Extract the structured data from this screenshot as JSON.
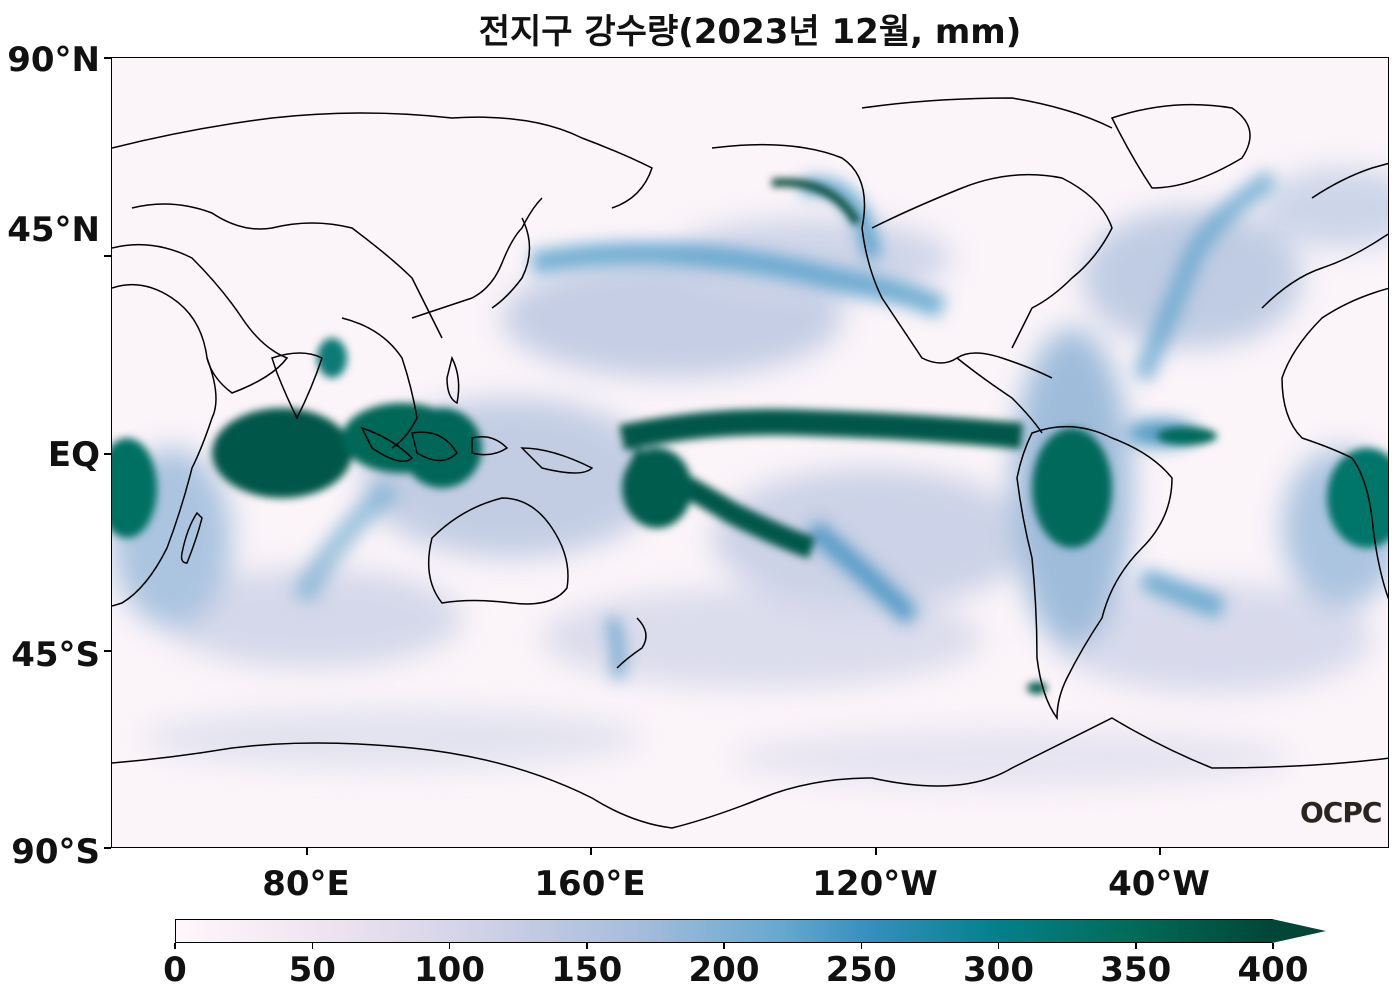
{
  "title": "전지구 강수량(2023년 12월, mm)",
  "axes": {
    "y_labels": [
      "90°N",
      "45°N",
      "EQ",
      "45°S",
      "90°S"
    ],
    "x_labels": [
      "80°E",
      "160°E",
      "120°W",
      "40°W"
    ]
  },
  "colorbar": {
    "ticks": [
      "0",
      "50",
      "100",
      "150",
      "200",
      "250",
      "300",
      "350",
      "400"
    ],
    "min": 0,
    "max": 400,
    "extend": "max",
    "colormap": [
      "#fff7fb",
      "#ece2f0",
      "#d0d1e6",
      "#a6bddb",
      "#67a9cf",
      "#3690c0",
      "#02818a",
      "#016c59",
      "#014636"
    ]
  },
  "logo_text": "OCPC",
  "colors": {
    "background": "#fbf4f9",
    "coastline": "#000000",
    "heavy_rain": "#014636"
  }
}
